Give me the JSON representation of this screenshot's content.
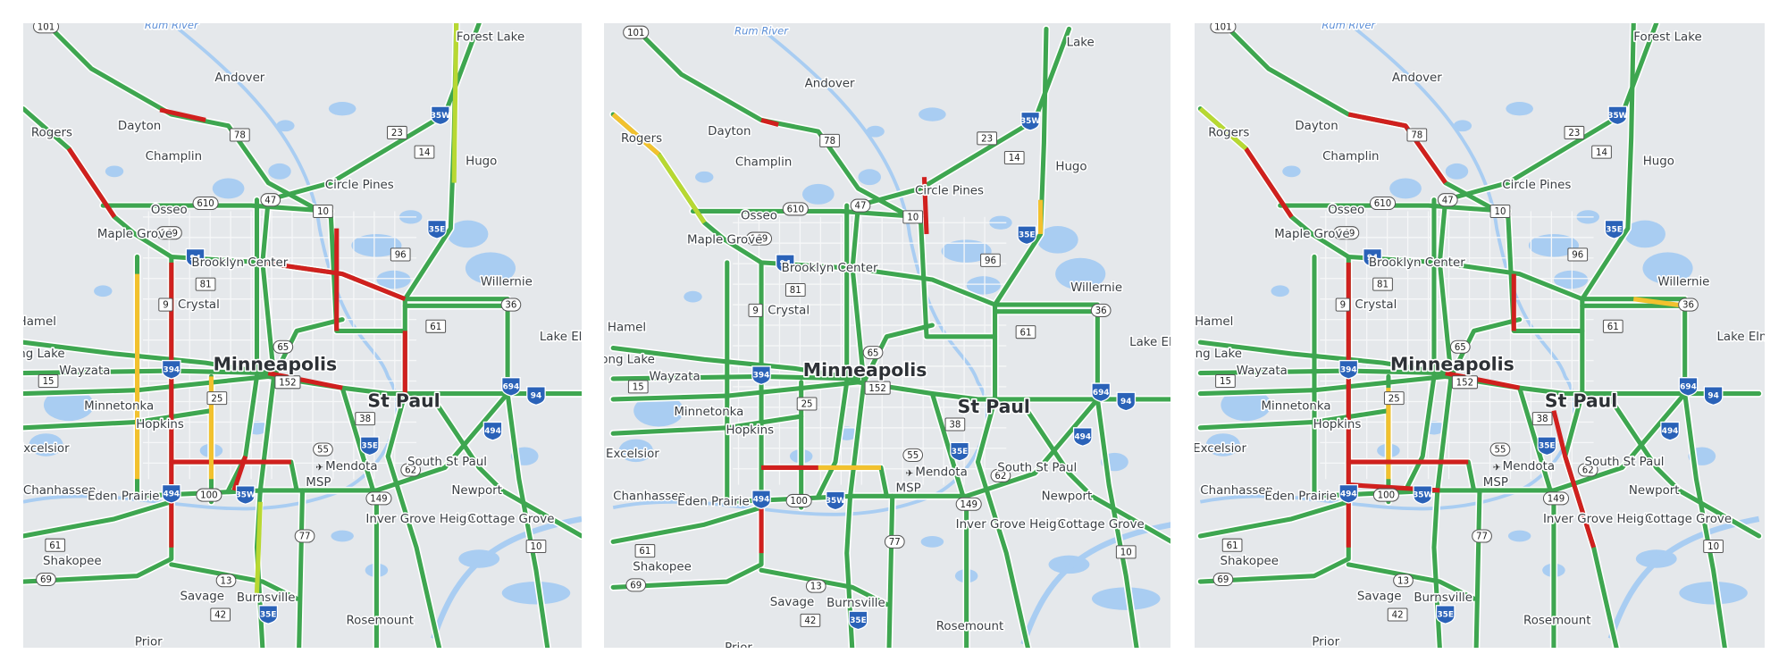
{
  "panels": [
    {
      "places": [
        "Rum River",
        "Forest Lake",
        "Andover",
        "Dayton",
        "Rogers",
        "Champlin",
        "Hugo",
        "Circle Pines",
        "Osseo",
        "Maple Grove",
        "Brooklyn Center",
        "Willernie",
        "Crystal",
        "Hamel",
        "Long Lake",
        "Lake Elmo",
        "Wayzata",
        "Minneapolis",
        "St Paul",
        "Minnetonka",
        "Hopkins",
        "Excelsior",
        "Mendota",
        "South St Paul",
        "MSP",
        "Chanhassen",
        "Eden Prairie",
        "Newport",
        "Inver Grove Heights",
        "Cottage Grove",
        "Shakopee",
        "Savage",
        "Burnsville",
        "Rosemount",
        "Prior"
      ],
      "routes": [
        "101",
        "78",
        "23",
        "14",
        "610",
        "47",
        "10",
        "169",
        "81",
        "9",
        "96",
        "65",
        "61",
        "36",
        "152",
        "25",
        "55",
        "38",
        "62",
        "149",
        "100",
        "77",
        "13",
        "42",
        "69",
        "10",
        "15",
        "61",
        "35W",
        "35E",
        "94",
        "394",
        "694",
        "94",
        "494",
        "35E",
        "494",
        "35W",
        "35E"
      ]
    },
    {
      "places": [
        "Rum River",
        "Lake",
        "Andover",
        "Dayton",
        "Rogers",
        "Champlin",
        "Hugo",
        "Circle Pines",
        "Osseo",
        "Maple Grove",
        "Brooklyn Center",
        "Willernie",
        "Crystal",
        "Hamel",
        "Long Lake",
        "Lake Elmo",
        "Wayzata",
        "Minneapolis",
        "St Paul",
        "Minnetonka",
        "Hopkins",
        "Excelsior",
        "Mendota",
        "South St Paul",
        "MSP",
        "Chanhassen",
        "Eden Prairie",
        "Newport",
        "Inver Grove Heights",
        "Cottage Grove",
        "Shakopee",
        "Savage",
        "Burnsville",
        "Rosemount",
        "Prior"
      ],
      "routes": [
        "101",
        "78",
        "23",
        "14",
        "610",
        "47",
        "10",
        "169",
        "81",
        "9",
        "96",
        "65",
        "61",
        "36",
        "152",
        "25",
        "55",
        "38",
        "62",
        "149",
        "100",
        "77",
        "13",
        "42",
        "69",
        "10",
        "15",
        "61",
        "35W",
        "35E",
        "94",
        "394",
        "694",
        "94",
        "494",
        "35E",
        "494",
        "35W",
        "35E"
      ]
    },
    {
      "places": [
        "Rum River",
        "Forest Lake",
        "Andover",
        "Dayton",
        "Rogers",
        "Champlin",
        "Hugo",
        "Circle Pines",
        "Osseo",
        "Maple Grove",
        "Brooklyn Center",
        "Willernie",
        "Crystal",
        "Hamel",
        "Long Lake",
        "Lake Elmo",
        "Wayzata",
        "Minneapolis",
        "St Paul",
        "Minnetonka",
        "Hopkins",
        "Excelsior",
        "Mendota",
        "South St Paul",
        "MSP",
        "Chanhassen",
        "Eden Prairie",
        "Newport",
        "Inver Grove Heights",
        "Cottage Grove",
        "Shakopee",
        "Savage",
        "Burnsville",
        "Rosemount",
        "Prior"
      ],
      "routes": [
        "101",
        "78",
        "23",
        "14",
        "610",
        "47",
        "10",
        "169",
        "81",
        "9",
        "96",
        "65",
        "61",
        "36",
        "152",
        "25",
        "55",
        "38",
        "62",
        "149",
        "100",
        "77",
        "13",
        "42",
        "69",
        "10",
        "15",
        "61",
        "35W",
        "35E",
        "94",
        "394",
        "694",
        "94",
        "494",
        "35E",
        "494",
        "35W",
        "35E"
      ]
    }
  ]
}
